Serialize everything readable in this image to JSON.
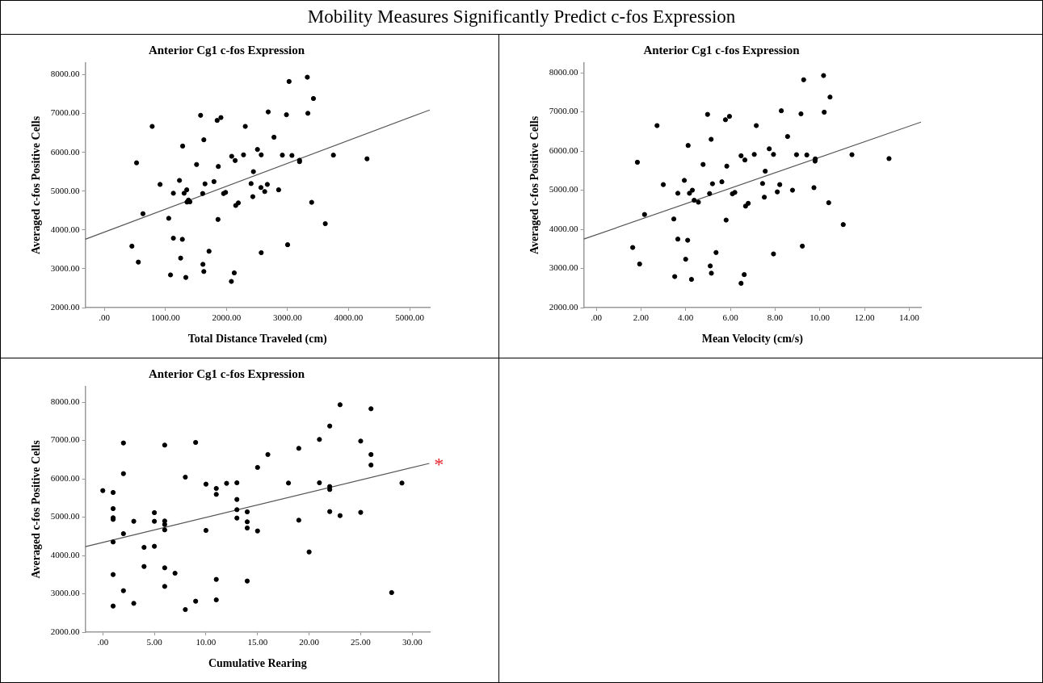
{
  "chart_data": [
    {
      "type": "other",
      "title": "Mobility Measures Significantly Predict c-fos Expression"
    },
    {
      "type": "scatter",
      "title": "Anterior Cg1 c-fos Expression",
      "xlabel": "Total Distance Traveled (cm)",
      "ylabel": "Averaged c-fos Positive Cells",
      "marker": "circle",
      "legend": false,
      "grid": false,
      "xlim": [
        -313,
        5330
      ],
      "ylim": [
        2000,
        8300
      ],
      "xticks": [
        {
          "value": 0,
          "label": ".00"
        },
        {
          "value": 1000,
          "label": "1000.00"
        },
        {
          "value": 2000,
          "label": "2000.00"
        },
        {
          "value": 3000,
          "label": "3000.00"
        },
        {
          "value": 4000,
          "label": "4000.00"
        },
        {
          "value": 5000,
          "label": "5000.00"
        }
      ],
      "yticks": [
        {
          "value": 2000,
          "label": "2000.00"
        },
        {
          "value": 3000,
          "label": "3000.00"
        },
        {
          "value": 4000,
          "label": "4000.00"
        },
        {
          "value": 5000,
          "label": "5000.00"
        },
        {
          "value": 6000,
          "label": "6000.00"
        },
        {
          "value": 7000,
          "label": "7000.00"
        },
        {
          "value": 8000,
          "label": "8000.00"
        }
      ],
      "series": [
        {
          "type": "scatter",
          "color": "#000000",
          "x": [
            3324,
            3025,
            3424,
            2683,
            1576,
            2982,
            3333,
            1909,
            1847,
            783,
            2308,
            1629,
            2778,
            1282,
            2507,
            2085,
            2279,
            2569,
            2915,
            3072,
            3751,
            4302,
            3196,
            3196,
            2142,
            527,
            1510,
            1866,
            2441,
            1230,
            1795,
            912,
            1648,
            2403,
            2669,
            2564,
            2626,
            2854,
            1349,
            1306,
            1130,
            1610,
            1952,
            1985,
            2431,
            1377,
            1353,
            1401,
            2194,
            2151,
            3395,
            632,
            1054,
            1861,
            3618,
            1130,
            1277,
            451,
            3001,
            2569,
            1714,
            1249,
            556,
            1614,
            1629,
            1083,
            1334,
            2127,
            2080
          ],
          "values": [
            7934,
            7824,
            7385,
            7040,
            6952,
            6967,
            7004,
            6894,
            6821,
            6667,
            6667,
            6322,
            6388,
            6161,
            6073,
            5897,
            5934,
            5934,
            5927,
            5919,
            5927,
            5832,
            5795,
            5758,
            5788,
            5729,
            5685,
            5634,
            5502,
            5275,
            5245,
            5172,
            5187,
            5194,
            5172,
            5092,
            4989,
            5033,
            5033,
            4945,
            4945,
            4938,
            4938,
            4967,
            4857,
            4769,
            4718,
            4725,
            4696,
            4630,
            4711,
            4418,
            4300,
            4271,
            4161,
            3788,
            3758,
            3582,
            3619,
            3414,
            3451,
            3275,
            3172,
            3114,
            2930,
            2842,
            2777,
            2894,
            2674
          ]
        },
        {
          "type": "line",
          "marker": "none",
          "color": "#555555",
          "x": [
            -313,
            5330
          ],
          "values": [
            3760,
            7090
          ]
        }
      ]
    },
    {
      "type": "scatter",
      "title": "Anterior Cg1 c-fos Expression",
      "xlabel": "Mean Velocity (cm/s)",
      "ylabel": "Averaged c-fos Positive Cells",
      "marker": "circle",
      "legend": false,
      "grid": false,
      "xlim": [
        -0.56,
        14.53
      ],
      "ylim": [
        2000,
        8250
      ],
      "xticks": [
        {
          "value": 0,
          "label": ".00"
        },
        {
          "value": 2,
          "label": "2.00"
        },
        {
          "value": 4,
          "label": "4.00"
        },
        {
          "value": 6,
          "label": "6.00"
        },
        {
          "value": 8,
          "label": "8.00"
        },
        {
          "value": 10,
          "label": "10.00"
        },
        {
          "value": 12,
          "label": "12.00"
        },
        {
          "value": 14,
          "label": "14.00"
        }
      ],
      "yticks": [
        {
          "value": 2000,
          "label": "2000.00"
        },
        {
          "value": 3000,
          "label": "3000.00"
        },
        {
          "value": 4000,
          "label": "4000.00"
        },
        {
          "value": 5000,
          "label": "5000.00"
        },
        {
          "value": 6000,
          "label": "6000.00"
        },
        {
          "value": 7000,
          "label": "7000.00"
        },
        {
          "value": 8000,
          "label": "8000.00"
        }
      ],
      "series": [
        {
          "type": "scatter",
          "color": "#000000",
          "x": [
            10.17,
            9.28,
            10.46,
            8.28,
            4.98,
            9.16,
            10.2,
            5.96,
            5.78,
            2.72,
            7.16,
            5.14,
            8.56,
            4.11,
            7.74,
            6.48,
            7.07,
            7.93,
            8.96,
            9.42,
            11.44,
            13.1,
            9.8,
            9.79,
            6.65,
            1.84,
            4.78,
            5.84,
            7.56,
            3.94,
            5.62,
            3.0,
            5.2,
            7.44,
            8.21,
            9.74,
            8.78,
            8.1,
            4.3,
            4.17,
            3.65,
            5.07,
            6.09,
            6.2,
            7.52,
            4.38,
            4.57,
            6.8,
            6.68,
            10.4,
            2.16,
            3.47,
            5.81,
            11.05,
            3.65,
            4.09,
            1.63,
            9.22,
            7.93,
            5.36,
            4.0,
            1.94,
            5.1,
            5.15,
            3.51,
            4.26,
            6.62,
            6.48
          ],
          "values": [
            7929,
            7821,
            7379,
            7029,
            6936,
            6950,
            6993,
            6886,
            6800,
            6650,
            6650,
            6300,
            6371,
            6143,
            6057,
            5879,
            5914,
            5914,
            5907,
            5900,
            5907,
            5807,
            5800,
            5743,
            5771,
            5714,
            5657,
            5614,
            5486,
            5250,
            5214,
            5143,
            5164,
            5171,
            5143,
            5064,
            5000,
            4957,
            5000,
            4921,
            4921,
            4914,
            4907,
            4943,
            4821,
            4743,
            4693,
            4664,
            4593,
            4679,
            4379,
            4264,
            4236,
            4121,
            3750,
            3721,
            3536,
            3571,
            3371,
            3407,
            3236,
            3114,
            3064,
            2879,
            2793,
            2721,
            2843,
            2621
          ]
        },
        {
          "type": "line",
          "marker": "none",
          "color": "#555555",
          "x": [
            -0.56,
            14.53
          ],
          "values": [
            3750,
            6740
          ]
        }
      ]
    },
    {
      "type": "scatter",
      "title": "Anterior Cg1 c-fos Expression",
      "xlabel": "Cumulative Rearing",
      "ylabel": "Averaged c-fos Positive Cells",
      "marker": "circle",
      "legend": false,
      "grid": false,
      "xlim": [
        -1.7,
        31.7
      ],
      "ylim": [
        2000,
        8400
      ],
      "xticks": [
        {
          "value": 0,
          "label": ".00"
        },
        {
          "value": 5,
          "label": "5.00"
        },
        {
          "value": 10,
          "label": "10.00"
        },
        {
          "value": 15,
          "label": "15.00"
        },
        {
          "value": 20,
          "label": "20.00"
        },
        {
          "value": 25,
          "label": "25.00"
        },
        {
          "value": 30,
          "label": "30.00"
        }
      ],
      "yticks": [
        {
          "value": 2000,
          "label": "2000.00"
        },
        {
          "value": 3000,
          "label": "3000.00"
        },
        {
          "value": 4000,
          "label": "4000.00"
        },
        {
          "value": 5000,
          "label": "5000.00"
        },
        {
          "value": 6000,
          "label": "6000.00"
        },
        {
          "value": 7000,
          "label": "7000.00"
        },
        {
          "value": 8000,
          "label": "8000.00"
        }
      ],
      "annotations": [
        {
          "text": "*",
          "x": 31.65,
          "y": 6400
        }
      ],
      "series": [
        {
          "type": "scatter",
          "color": "#000000",
          "x": [
            0,
            1,
            1,
            1,
            1,
            1,
            1,
            1,
            2,
            2,
            2,
            2,
            3,
            3,
            4,
            4,
            5,
            5,
            5,
            6,
            6,
            6,
            6,
            6,
            6,
            7,
            8,
            8,
            9,
            9,
            10,
            10,
            11,
            11,
            11,
            11,
            12,
            13,
            13,
            13,
            13,
            14,
            14,
            14,
            14,
            15,
            15,
            16,
            18,
            19,
            19,
            20,
            21,
            21,
            22,
            22,
            22,
            22,
            23,
            23,
            25,
            25,
            26,
            26,
            26,
            28,
            29
          ],
          "values": [
            5691,
            5642,
            5221,
            4982,
            4940,
            4351,
            3502,
            2681,
            6933,
            6133,
            4568,
            3081,
            4891,
            2751,
            4211,
            3712,
            5116,
            4891,
            4239,
            6877,
            4898,
            4807,
            4667,
            3677,
            3193,
            3537,
            6042,
            2589,
            6947,
            2807,
            5860,
            4653,
            5747,
            5593,
            3375,
            2842,
            5881,
            5895,
            5460,
            5193,
            4975,
            5137,
            4877,
            4716,
            3333,
            6295,
            4639,
            6632,
            5888,
            6793,
            4919,
            4091,
            7025,
            5895,
            7375,
            5796,
            5719,
            5144,
            7930,
            5039,
            6982,
            5123,
            7825,
            6632,
            6358,
            3032,
            5888
          ]
        },
        {
          "type": "line",
          "marker": "none",
          "color": "#555555",
          "x": [
            -1.69,
            31.65
          ],
          "values": [
            4230,
            6400
          ]
        }
      ]
    }
  ]
}
